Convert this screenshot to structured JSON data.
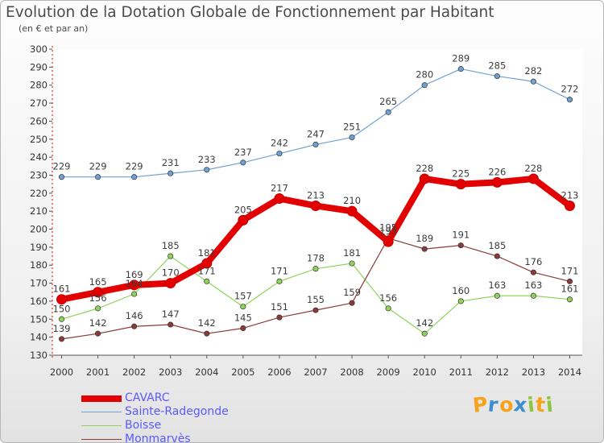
{
  "chart_data": {
    "type": "line",
    "title": "Evolution de la Dotation Globale de Fonctionnement par Habitant",
    "subtitle": "(en € et par an)",
    "xlabel": "",
    "ylabel": "",
    "ylim": [
      130,
      300
    ],
    "ytick_step": 10,
    "categories": [
      "2000",
      "2001",
      "2002",
      "2003",
      "2004",
      "2005",
      "2006",
      "2007",
      "2008",
      "2009",
      "2010",
      "2011",
      "2012",
      "2013",
      "2014"
    ],
    "grid": false,
    "legend_position": "bottom-left",
    "series": [
      {
        "name": "CAVARC",
        "color": "#e30000",
        "values": [
          161,
          165,
          169,
          170,
          181,
          205,
          217,
          213,
          210,
          193,
          228,
          225,
          226,
          228,
          213
        ]
      },
      {
        "name": "Sainte-Radegonde",
        "color": "#6fa1d4",
        "values": [
          229,
          229,
          229,
          231,
          233,
          237,
          242,
          247,
          251,
          265,
          280,
          289,
          285,
          282,
          272
        ]
      },
      {
        "name": "Boisse",
        "color": "#8fd35a",
        "values": [
          150,
          156,
          164,
          185,
          171,
          157,
          171,
          178,
          181,
          156,
          142,
          160,
          163,
          163,
          161
        ]
      },
      {
        "name": "Monmarvès",
        "color": "#8b3a3a",
        "values": [
          139,
          142,
          146,
          147,
          142,
          145,
          151,
          155,
          159,
          195,
          189,
          191,
          185,
          176,
          171
        ]
      }
    ]
  },
  "legend_text_color": "#5a5aff",
  "logo": {
    "letters": [
      "P",
      "r",
      "o",
      "x",
      "i",
      "t",
      "i"
    ],
    "colors": [
      "#f7a21b",
      "#3b8fd1",
      "#f7a21b",
      "#3b8fd1",
      "#8cc63f",
      "#f7a21b",
      "#8cc63f"
    ]
  }
}
